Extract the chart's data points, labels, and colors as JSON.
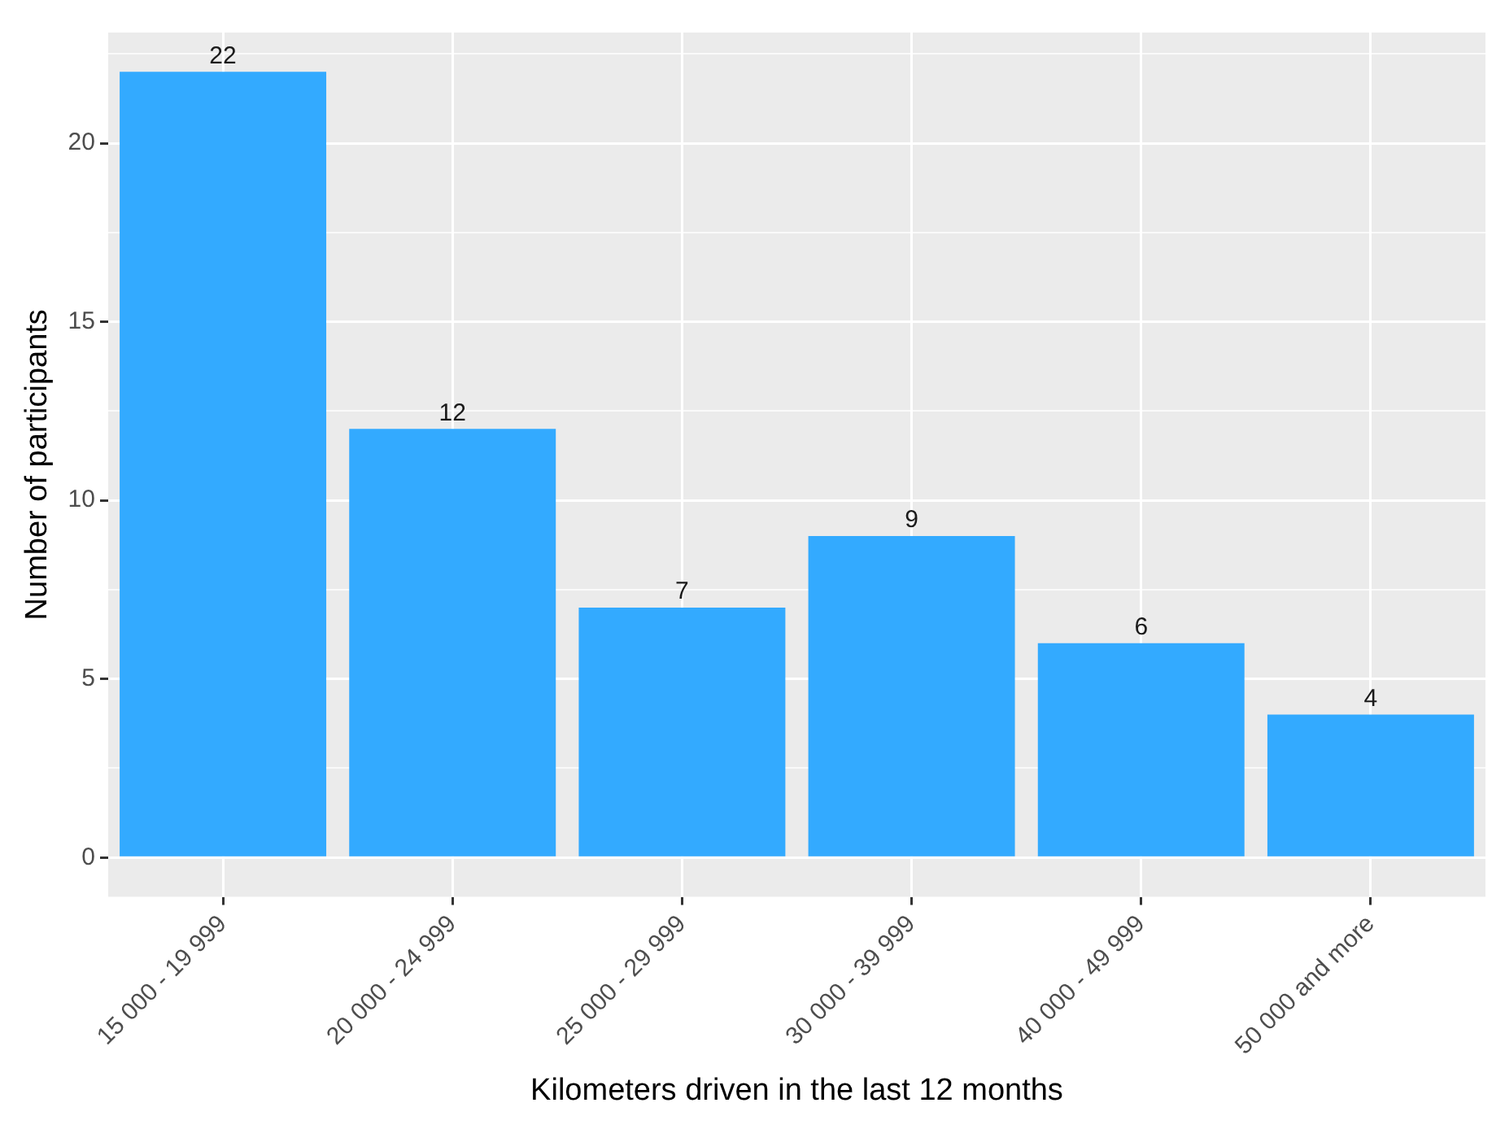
{
  "chart_data": {
    "type": "bar",
    "xlabel": "Kilometers driven in the last 12 months",
    "ylabel": "Number of participants",
    "categories": [
      "15 000 - 19 999",
      "20 000 - 24 999",
      "25 000 - 29 999",
      "30 000 - 39 999",
      "40 000 - 49 999",
      "50 000 and more"
    ],
    "values": [
      22,
      12,
      7,
      9,
      6,
      4
    ],
    "color": "#33aaff",
    "ylim": [
      -1.1,
      23.1
    ],
    "yticks": [
      0,
      {
        "value": 2.5,
        "label": null
      },
      5,
      {
        "value": 7.5,
        "label": null
      },
      10,
      {
        "value": 12.5,
        "label": null
      },
      15,
      {
        "value": 17.5,
        "label": null
      },
      20,
      {
        "value": 22.5,
        "label": null
      }
    ],
    "grid": true,
    "data_labels": true
  }
}
